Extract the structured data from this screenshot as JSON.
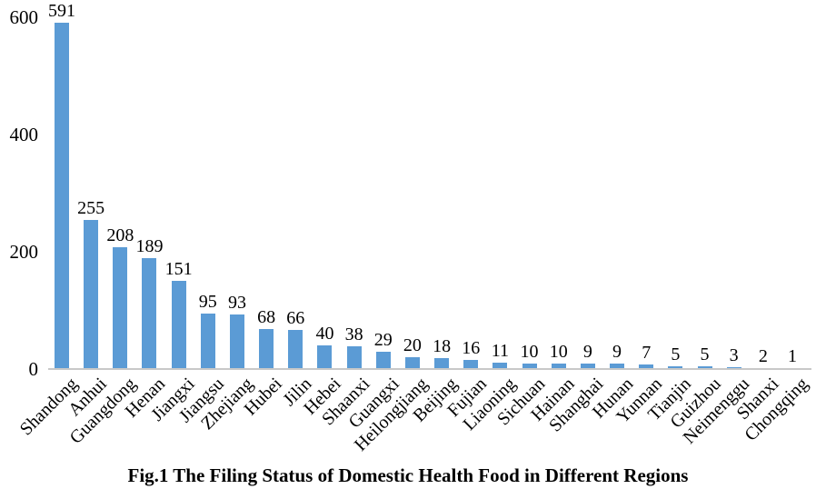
{
  "chart_data": {
    "type": "bar",
    "title": "Fig.1 The Filing Status of Domestic Health Food in Different Regions",
    "xlabel": "",
    "ylabel": "",
    "categories": [
      "Shandong",
      "Anhui",
      "Guangdong",
      "Henan",
      "Jiangxi",
      "Jiangsu",
      "Zhejiang",
      "Hubei",
      "Jilin",
      "Hebei",
      "Shaanxi",
      "Guangxi",
      "Heilongjiang",
      "Beijing",
      "Fujian",
      "Liaoning",
      "Sichuan",
      "Hainan",
      "Shanghai",
      "Hunan",
      "Yunnan",
      "Tianjin",
      "Guizhou",
      "Neimenggu",
      "Shanxi",
      "Chongqing"
    ],
    "values": [
      591,
      255,
      208,
      189,
      151,
      95,
      93,
      68,
      66,
      40,
      38,
      29,
      20,
      18,
      16,
      11,
      10,
      10,
      9,
      9,
      7,
      5,
      5,
      3,
      2,
      1
    ],
    "ylim": [
      0,
      600
    ],
    "yticks": [
      0,
      200,
      400,
      600
    ],
    "data_labels": true,
    "grid": false,
    "legend": false,
    "bar_color": "#5b9bd5",
    "axis_line_color": "#c8c8c8",
    "text_color": "#000000"
  }
}
